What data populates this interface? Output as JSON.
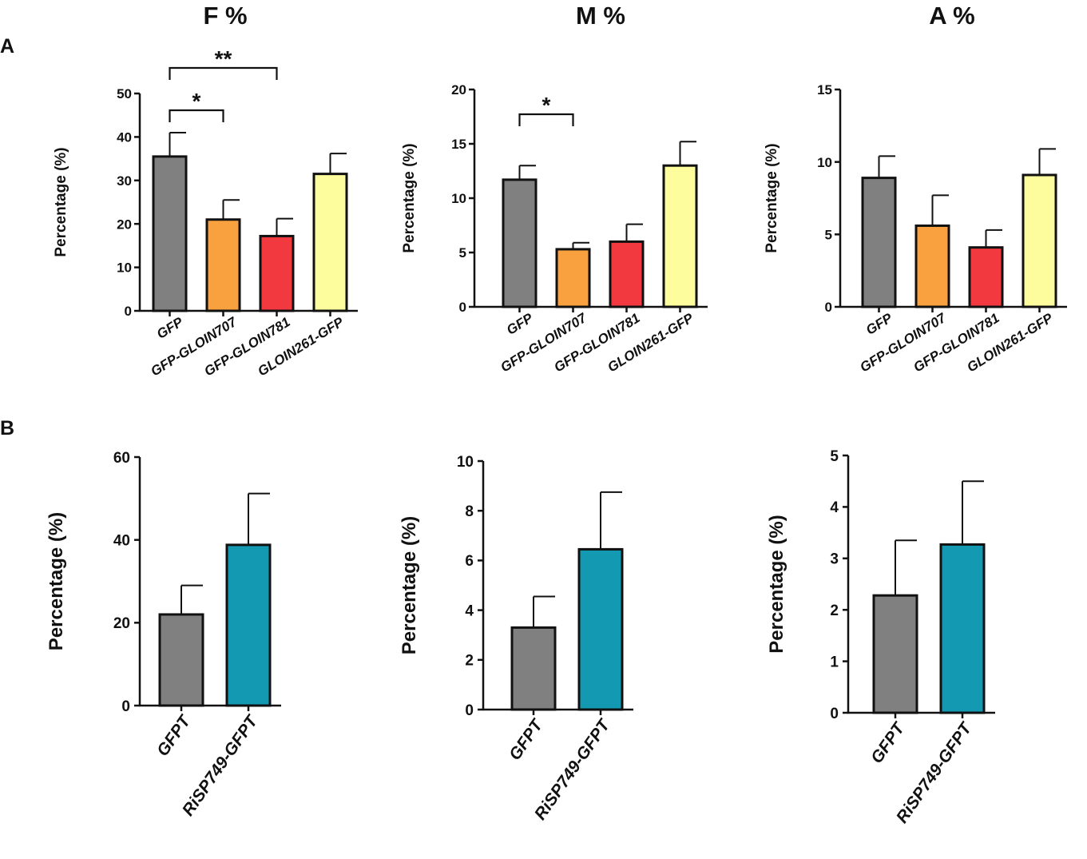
{
  "figure": {
    "column_titles": [
      "F %",
      "M %",
      "A %"
    ],
    "panel_labels": [
      "A",
      "B"
    ]
  },
  "colors": {
    "gray": "#808080",
    "orange": "#f9a03f",
    "red": "#f1393f",
    "yellow": "#fdfd9d",
    "teal": "#1499b3",
    "ink": "#111111"
  },
  "chart_data": [
    {
      "id": "A-F",
      "type": "bar",
      "panel": "A",
      "column_title": "F %",
      "ylabel": "Percentage (%)",
      "ylim": [
        0,
        50
      ],
      "yticks": [
        0,
        10,
        20,
        30,
        40,
        50
      ],
      "categories": [
        "GFP",
        "GFP-GLOIN707",
        "GFP-GLOIN781",
        "GLOIN261-GFP"
      ],
      "values": [
        35.5,
        21,
        17.2,
        31.5
      ],
      "errors": [
        5.5,
        4.5,
        4,
        4.7
      ],
      "bar_colors": [
        "#808080",
        "#f9a03f",
        "#f1393f",
        "#fdfd9d"
      ],
      "significance": [
        {
          "from": 0,
          "to": 1,
          "label": "*"
        },
        {
          "from": 0,
          "to": 2,
          "label": "**"
        }
      ]
    },
    {
      "id": "A-M",
      "type": "bar",
      "panel": "A",
      "column_title": "M %",
      "ylabel": "Percentage (%)",
      "ylim": [
        0,
        20
      ],
      "yticks": [
        0,
        5,
        10,
        15,
        20
      ],
      "categories": [
        "GFP",
        "GFP-GLOIN707",
        "GFP-GLOIN781",
        "GLOIN261-GFP"
      ],
      "values": [
        11.7,
        5.3,
        6,
        13
      ],
      "errors": [
        1.3,
        0.6,
        1.6,
        2.2
      ],
      "bar_colors": [
        "#808080",
        "#f9a03f",
        "#f1393f",
        "#fdfd9d"
      ],
      "significance": [
        {
          "from": 0,
          "to": 1,
          "label": "*"
        }
      ]
    },
    {
      "id": "A-A",
      "type": "bar",
      "panel": "A",
      "column_title": "A %",
      "ylabel": "Percentage (%)",
      "ylim": [
        0,
        15
      ],
      "yticks": [
        0,
        5,
        10,
        15
      ],
      "categories": [
        "GFP",
        "GFP-GLOIN707",
        "GFP-GLOIN781",
        "GLOIN261-GFP"
      ],
      "values": [
        8.9,
        5.6,
        4.1,
        9.1
      ],
      "errors": [
        1.5,
        2.1,
        1.2,
        1.8
      ],
      "bar_colors": [
        "#808080",
        "#f9a03f",
        "#f1393f",
        "#fdfd9d"
      ],
      "significance": []
    },
    {
      "id": "B-F",
      "type": "bar",
      "panel": "B",
      "ylabel": "Percentage (%)",
      "ylim": [
        0,
        60
      ],
      "yticks": [
        0,
        20,
        40,
        60
      ],
      "categories": [
        "GFPT",
        "RiSP749-GFPT"
      ],
      "values": [
        22,
        38.8
      ],
      "errors": [
        7,
        12.4
      ],
      "bar_colors": [
        "#808080",
        "#1499b3"
      ],
      "significance": []
    },
    {
      "id": "B-M",
      "type": "bar",
      "panel": "B",
      "ylabel": "Percentage (%)",
      "ylim": [
        0,
        10
      ],
      "yticks": [
        0,
        2,
        4,
        6,
        8,
        10
      ],
      "categories": [
        "GFPT",
        "RiSP749-GFPT"
      ],
      "values": [
        3.3,
        6.45
      ],
      "errors": [
        1.25,
        2.3
      ],
      "bar_colors": [
        "#808080",
        "#1499b3"
      ],
      "significance": []
    },
    {
      "id": "B-A",
      "type": "bar",
      "panel": "B",
      "ylabel": "Percentage (%)",
      "ylim": [
        0,
        5
      ],
      "yticks": [
        0,
        1,
        2,
        3,
        4,
        5
      ],
      "categories": [
        "GFPT",
        "RiSP749-GFPT"
      ],
      "values": [
        2.28,
        3.27
      ],
      "errors": [
        1.07,
        1.23
      ],
      "bar_colors": [
        "#808080",
        "#1499b3"
      ],
      "significance": []
    }
  ]
}
